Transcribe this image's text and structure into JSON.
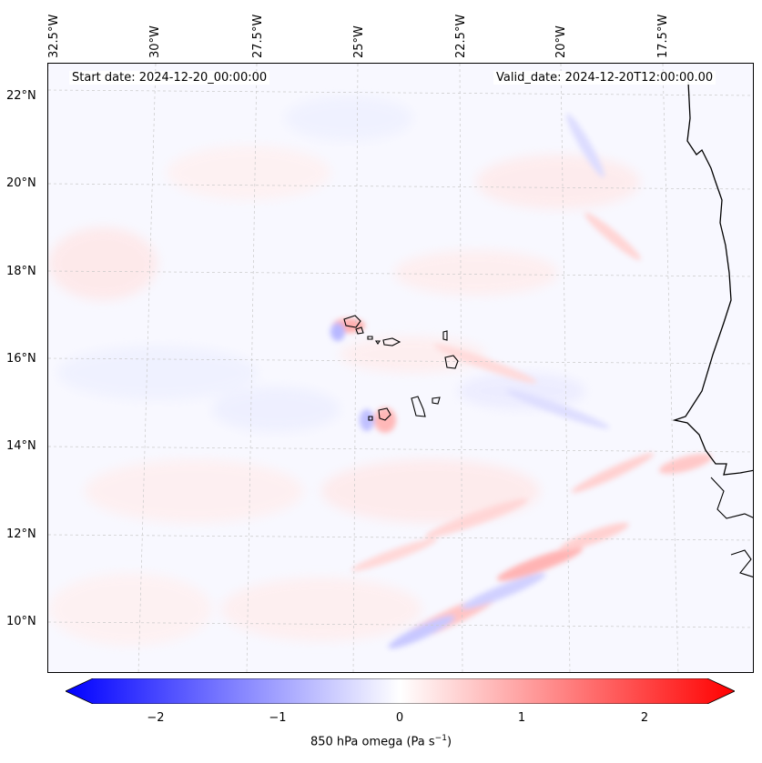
{
  "map": {
    "start_date": "Start date: 2024-12-20_00:00:00",
    "valid_date": "Valid_date: 2024-12-20T12:00:00.00",
    "lon_labels": [
      "32.5°W",
      "30°W",
      "27.5°W",
      "25°W",
      "22.5°W",
      "20°W",
      "17.5°W"
    ],
    "lat_labels": [
      "22°N",
      "20°N",
      "18°N",
      "16°N",
      "14°N",
      "12°N",
      "10°N"
    ],
    "colors": {
      "negative": "#0000ff",
      "zero": "#ffffff",
      "positive": "#ff0000"
    }
  },
  "colorbar": {
    "ticks": [
      "−2",
      "−1",
      "0",
      "1",
      "2"
    ],
    "label_main": "850 hPa omega (Pa s",
    "label_exp": "−1",
    "label_end": ")"
  }
}
